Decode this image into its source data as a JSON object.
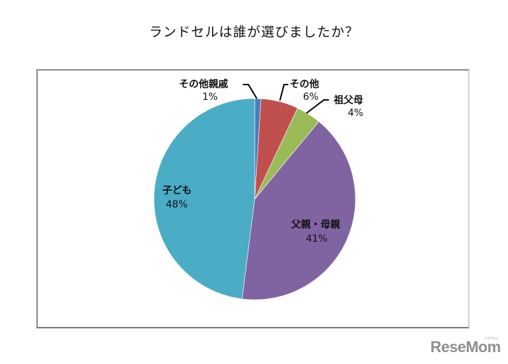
{
  "title": "ランドセルは誰が選びましたか？",
  "chart_data": {
    "type": "pie",
    "title": "ランドセルは誰が選びましたか？",
    "start_angle": "12 o'clock, clockwise",
    "categories": [
      "その他親戚",
      "その他",
      "祖父母",
      "父親・母親",
      "子ども"
    ],
    "values": [
      1,
      6,
      4,
      41,
      48
    ],
    "unit": "%",
    "colors": [
      "#4a7ebb",
      "#c0504d",
      "#9bbb59",
      "#8064a2",
      "#4bacc6"
    ],
    "slices": [
      {
        "label": "その他親戚",
        "value": 1,
        "display": "1%",
        "color": "#4a7ebb"
      },
      {
        "label": "その他",
        "value": 6,
        "display": "6%",
        "color": "#c0504d"
      },
      {
        "label": "祖父母",
        "value": 4,
        "display": "4%",
        "color": "#9bbb59"
      },
      {
        "label": "父親・母親",
        "value": 41,
        "display": "41%",
        "color": "#8064a2"
      },
      {
        "label": "子ども",
        "value": 48,
        "display": "48%",
        "color": "#4bacc6"
      }
    ],
    "legend": "none (data labels)"
  },
  "labels": {
    "relatives": {
      "name": "その他親戚",
      "pct": "1%"
    },
    "other": {
      "name": "その他",
      "pct": "6%"
    },
    "grandparents": {
      "name": "祖父母",
      "pct": "4%"
    },
    "parents": {
      "name": "父親・母親",
      "pct": "41%"
    },
    "child": {
      "name": "子ども",
      "pct": "48%"
    }
  },
  "watermark": {
    "brand": "ReseMom",
    "sub": "リセマム"
  }
}
